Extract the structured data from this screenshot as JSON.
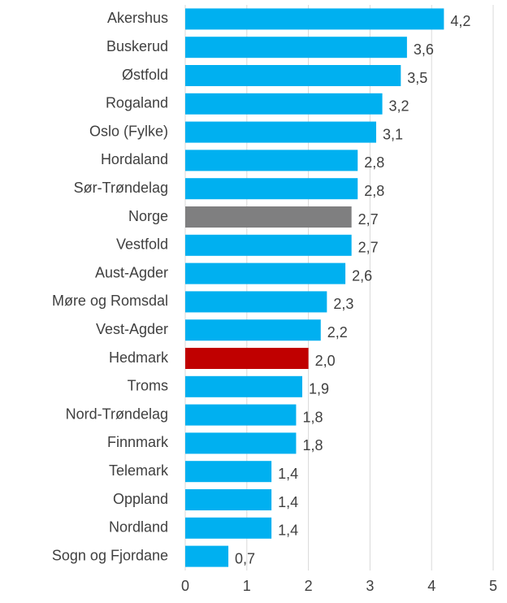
{
  "chart_data": {
    "type": "bar",
    "orientation": "horizontal",
    "categories": [
      "Akershus",
      "Buskerud",
      "Østfold",
      "Rogaland",
      "Oslo (Fylke)",
      "Hordaland",
      "Sør-Trøndelag",
      "Norge",
      "Vestfold",
      "Aust-Agder",
      "Møre og Romsdal",
      "Vest-Agder",
      "Hedmark",
      "Troms",
      "Nord-Trøndelag",
      "Finnmark",
      "Telemark",
      "Oppland",
      "Nordland",
      "Sogn og Fjordane"
    ],
    "values": [
      4.2,
      3.6,
      3.5,
      3.2,
      3.1,
      2.8,
      2.8,
      2.7,
      2.7,
      2.6,
      2.3,
      2.2,
      2.0,
      1.9,
      1.8,
      1.8,
      1.4,
      1.4,
      1.4,
      0.7
    ],
    "value_labels": [
      "4,2",
      "3,6",
      "3,5",
      "3,2",
      "3,1",
      "2,8",
      "2,8",
      "2,7",
      "2,7",
      "2,6",
      "2,3",
      "2,2",
      "2,0",
      "1,9",
      "1,8",
      "1,8",
      "1,4",
      "1,4",
      "1,4",
      "0,7"
    ],
    "colors": [
      "#00b0f0",
      "#00b0f0",
      "#00b0f0",
      "#00b0f0",
      "#00b0f0",
      "#00b0f0",
      "#00b0f0",
      "#7f7f80",
      "#00b0f0",
      "#00b0f0",
      "#00b0f0",
      "#00b0f0",
      "#c00000",
      "#00b0f0",
      "#00b0f0",
      "#00b0f0",
      "#00b0f0",
      "#00b0f0",
      "#00b0f0",
      "#00b0f0"
    ],
    "xlim": [
      0,
      5
    ],
    "xticks": [
      0,
      1,
      2,
      3,
      4,
      5
    ],
    "grid": true
  }
}
